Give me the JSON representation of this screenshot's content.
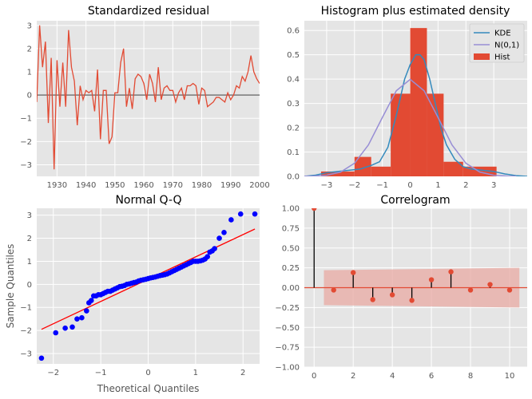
{
  "chart_data": [
    {
      "type": "line",
      "title": "Standardized residual",
      "xlabel": "",
      "ylabel": "",
      "xlim": [
        1923,
        2000
      ],
      "ylim": [
        -3.5,
        3.2
      ],
      "xticks": [
        1930,
        1940,
        1950,
        1960,
        1970,
        1980,
        1990,
        2000
      ],
      "yticks": [
        -3,
        -2,
        -1,
        0,
        1,
        2,
        3
      ],
      "hline": 0,
      "series": [
        {
          "x": [
            1923,
            1924,
            1925,
            1926,
            1927,
            1928,
            1929,
            1930,
            1931,
            1932,
            1933,
            1934,
            1935,
            1936,
            1937,
            1938,
            1939,
            1940,
            1941,
            1942,
            1943,
            1944,
            1945,
            1946,
            1947,
            1948,
            1949,
            1950,
            1951,
            1952,
            1953,
            1954,
            1955,
            1956,
            1957,
            1958,
            1959,
            1960,
            1961,
            1962,
            1963,
            1964,
            1965,
            1966,
            1967,
            1968,
            1969,
            1970,
            1971,
            1972,
            1973,
            1974,
            1975,
            1976,
            1977,
            1978,
            1979,
            1980,
            1981,
            1982,
            1983,
            1984,
            1985,
            1986,
            1987,
            1988,
            1989,
            1990,
            1991,
            1992,
            1993,
            1994,
            1995,
            1996,
            1997,
            1998,
            1999,
            2000
          ],
          "y": [
            -0.3,
            3.0,
            1.2,
            2.3,
            -1.2,
            1.6,
            -3.2,
            1.5,
            -0.5,
            1.4,
            -0.5,
            2.8,
            1.2,
            0.6,
            -1.3,
            0.4,
            -0.2,
            0.2,
            0.1,
            0.2,
            -0.7,
            1.1,
            -1.9,
            0.2,
            0.2,
            -2.1,
            -1.8,
            0.1,
            0.1,
            1.4,
            2.0,
            -0.5,
            0.3,
            -0.6,
            0.7,
            0.9,
            0.8,
            0.5,
            -0.2,
            0.9,
            0.5,
            -0.3,
            1.2,
            -0.2,
            0.3,
            0.4,
            0.2,
            0.2,
            -0.3,
            0.1,
            0.3,
            -0.2,
            0.4,
            0.4,
            0.5,
            0.4,
            -0.4,
            0.3,
            0.2,
            -0.5,
            -0.4,
            -0.3,
            -0.1,
            -0.1,
            -0.2,
            -0.3,
            0.1,
            -0.2,
            0.0,
            0.4,
            0.3,
            0.8,
            0.6,
            1.0,
            1.7,
            1.0,
            0.7,
            0.5
          ]
        }
      ]
    },
    {
      "type": "bar",
      "title": "Histogram plus estimated density",
      "xlim": [
        -3.8,
        4.2
      ],
      "ylim": [
        0,
        0.64
      ],
      "xticks": [
        -3,
        -2,
        -1,
        0,
        1,
        2,
        3
      ],
      "yticks": [
        0.0,
        0.1,
        0.2,
        0.3,
        0.4,
        0.5,
        0.6
      ],
      "legend_position": "top-right",
      "hist": {
        "name": "Hist",
        "edges": [
          -3.2,
          -2.0,
          -1.4,
          -0.7,
          0.0,
          0.6,
          1.2,
          1.9,
          3.1
        ],
        "values": [
          0.02,
          0.08,
          0.04,
          0.34,
          0.61,
          0.34,
          0.06,
          0.04
        ]
      },
      "series": [
        {
          "name": "KDE",
          "x": [
            -3.8,
            -3.4,
            -3.0,
            -2.6,
            -2.2,
            -1.8,
            -1.4,
            -1.1,
            -0.8,
            -0.5,
            -0.2,
            0.0,
            0.2,
            0.35,
            0.5,
            0.7,
            0.9,
            1.1,
            1.3,
            1.6,
            1.9,
            2.2,
            2.6,
            3.0,
            3.4,
            3.8,
            4.2
          ],
          "y": [
            0.0,
            0.005,
            0.015,
            0.02,
            0.025,
            0.03,
            0.045,
            0.06,
            0.12,
            0.25,
            0.4,
            0.46,
            0.5,
            0.5,
            0.48,
            0.4,
            0.3,
            0.2,
            0.13,
            0.07,
            0.04,
            0.03,
            0.025,
            0.02,
            0.01,
            0.003,
            0.0
          ]
        },
        {
          "name": "N(0,1)",
          "x": [
            -3.8,
            -3.5,
            -3.0,
            -2.5,
            -2.0,
            -1.5,
            -1.0,
            -0.5,
            0.0,
            0.5,
            1.0,
            1.5,
            2.0,
            2.5,
            3.0,
            3.5,
            3.8
          ],
          "y": [
            0.0003,
            0.0009,
            0.0044,
            0.0175,
            0.054,
            0.1295,
            0.242,
            0.352,
            0.399,
            0.352,
            0.242,
            0.1295,
            0.054,
            0.0175,
            0.0044,
            0.0009,
            0.0003
          ]
        }
      ],
      "colors": {
        "KDE": "#348abd",
        "N(0,1)": "#988ed5",
        "Hist": "#e24a33"
      }
    },
    {
      "type": "scatter",
      "title": "Normal Q-Q",
      "xlabel": "Theoretical Quantiles",
      "ylabel": "Sample Quantiles",
      "xlim": [
        -2.35,
        2.35
      ],
      "ylim": [
        -3.45,
        3.3
      ],
      "xticks": [
        -2,
        -1,
        0,
        1,
        2
      ],
      "yticks": [
        -3,
        -2,
        -1,
        0,
        1,
        2,
        3
      ],
      "points": {
        "x": [
          -2.25,
          -1.95,
          -1.75,
          -1.6,
          -1.5,
          -1.4,
          -1.3,
          -1.25,
          -1.2,
          -1.15,
          -1.1,
          -1.05,
          -1.0,
          -0.95,
          -0.9,
          -0.85,
          -0.8,
          -0.75,
          -0.7,
          -0.65,
          -0.6,
          -0.55,
          -0.5,
          -0.45,
          -0.4,
          -0.35,
          -0.3,
          -0.25,
          -0.2,
          -0.15,
          -0.1,
          -0.05,
          0.0,
          0.05,
          0.1,
          0.15,
          0.2,
          0.25,
          0.3,
          0.35,
          0.4,
          0.45,
          0.5,
          0.55,
          0.6,
          0.65,
          0.7,
          0.75,
          0.8,
          0.85,
          0.9,
          0.95,
          1.0,
          1.05,
          1.1,
          1.15,
          1.2,
          1.25,
          1.3,
          1.35,
          1.4,
          1.5,
          1.6,
          1.75,
          1.95,
          2.25
        ],
        "y": [
          -3.2,
          -2.1,
          -1.9,
          -1.85,
          -1.5,
          -1.45,
          -1.15,
          -0.8,
          -0.7,
          -0.5,
          -0.5,
          -0.45,
          -0.45,
          -0.4,
          -0.35,
          -0.3,
          -0.3,
          -0.25,
          -0.2,
          -0.15,
          -0.1,
          -0.08,
          -0.05,
          0.0,
          0.02,
          0.05,
          0.08,
          0.1,
          0.15,
          0.18,
          0.2,
          0.22,
          0.25,
          0.28,
          0.3,
          0.32,
          0.35,
          0.38,
          0.4,
          0.42,
          0.45,
          0.5,
          0.55,
          0.6,
          0.65,
          0.7,
          0.75,
          0.8,
          0.85,
          0.9,
          0.95,
          1.0,
          1.0,
          1.0,
          1.02,
          1.05,
          1.1,
          1.2,
          1.4,
          1.45,
          1.55,
          2.0,
          2.25,
          2.8,
          3.05,
          3.05
        ]
      },
      "reference_line": {
        "x": [
          -2.25,
          2.25
        ],
        "y": [
          -1.95,
          2.4
        ]
      },
      "colors": {
        "points": "#0000ff",
        "line": "#ff0000"
      }
    },
    {
      "type": "bar",
      "title": "Correlogram",
      "xlim": [
        -0.5,
        10.9
      ],
      "ylim": [
        -1.0,
        1.0
      ],
      "xticks": [
        0,
        2,
        4,
        6,
        8,
        10
      ],
      "yticks": [
        -1.0,
        -0.75,
        -0.5,
        -0.25,
        0.0,
        0.25,
        0.5,
        0.75,
        1.0
      ],
      "lags": [
        0,
        1,
        2,
        3,
        4,
        5,
        6,
        7,
        8,
        9,
        10
      ],
      "values": [
        1.0,
        -0.03,
        0.19,
        -0.15,
        -0.09,
        -0.16,
        0.1,
        0.2,
        -0.03,
        0.04,
        -0.03
      ],
      "confidence_band": {
        "x": [
          0.5,
          10.5
        ],
        "upper": [
          0.22,
          0.25
        ],
        "lower": [
          -0.22,
          -0.25
        ]
      },
      "colors": {
        "points": "#e24a33",
        "band": "#e8a9a3"
      }
    }
  ]
}
